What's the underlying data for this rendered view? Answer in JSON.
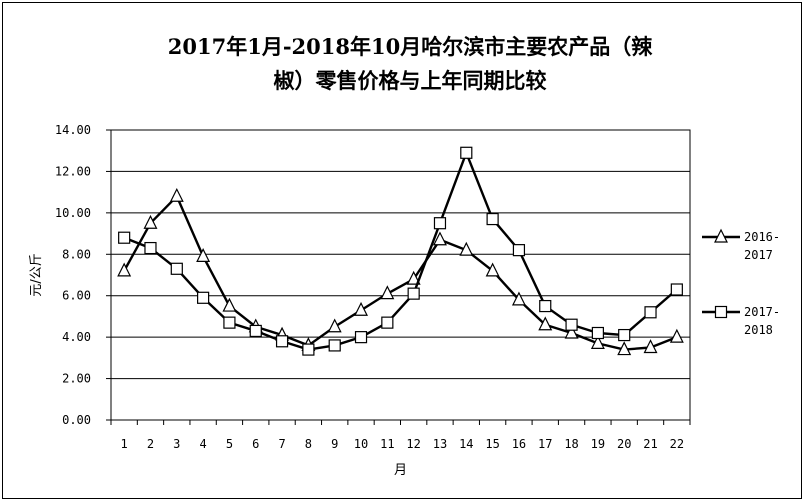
{
  "chart_data": {
    "type": "line",
    "title": "2017年1月-2018年10月哈尔滨市主要农产品（辣椒）零售价格与上年同期比较",
    "title_lines": [
      "2017年1月-2018年10月哈尔滨市主要农产品（辣",
      "椒）零售价格与上年同期比较"
    ],
    "xlabel": "月",
    "ylabel": "元/公斤",
    "x": [
      1,
      2,
      3,
      4,
      5,
      6,
      7,
      8,
      9,
      10,
      11,
      12,
      13,
      14,
      15,
      16,
      17,
      18,
      19,
      20,
      21,
      22
    ],
    "x_tick_labels": [
      "1",
      "2",
      "3",
      "4",
      "5",
      "6",
      "7",
      "8",
      "9",
      "10",
      "11",
      "12",
      "13",
      "14",
      "15",
      "16",
      "17",
      "18",
      "19",
      "20",
      "21",
      "22"
    ],
    "ylim": [
      0,
      14
    ],
    "y_ticks": [
      0,
      2,
      4,
      6,
      8,
      10,
      12,
      14
    ],
    "y_tick_labels": [
      "0.00",
      "2.00",
      "4.00",
      "6.00",
      "8.00",
      "10.00",
      "12.00",
      "14.00"
    ],
    "grid": true,
    "legend_position": "right",
    "series": [
      {
        "name": "2016-2017",
        "name_lines": [
          "2016-",
          "2017"
        ],
        "marker": "triangle",
        "color": "#000000",
        "values": [
          7.2,
          9.5,
          10.8,
          7.9,
          5.5,
          4.5,
          4.1,
          3.6,
          4.5,
          5.3,
          6.1,
          6.8,
          8.7,
          8.2,
          7.2,
          5.8,
          4.6,
          4.2,
          3.7,
          3.4,
          3.5,
          4.0
        ]
      },
      {
        "name": "2017-2018",
        "name_lines": [
          "2017-",
          "2018"
        ],
        "marker": "square",
        "color": "#000000",
        "values": [
          8.8,
          8.3,
          7.3,
          5.9,
          4.7,
          4.3,
          3.8,
          3.4,
          3.6,
          4.0,
          4.7,
          6.1,
          9.5,
          12.9,
          9.7,
          8.2,
          5.5,
          4.6,
          4.2,
          4.1,
          5.2,
          6.3
        ]
      }
    ]
  }
}
